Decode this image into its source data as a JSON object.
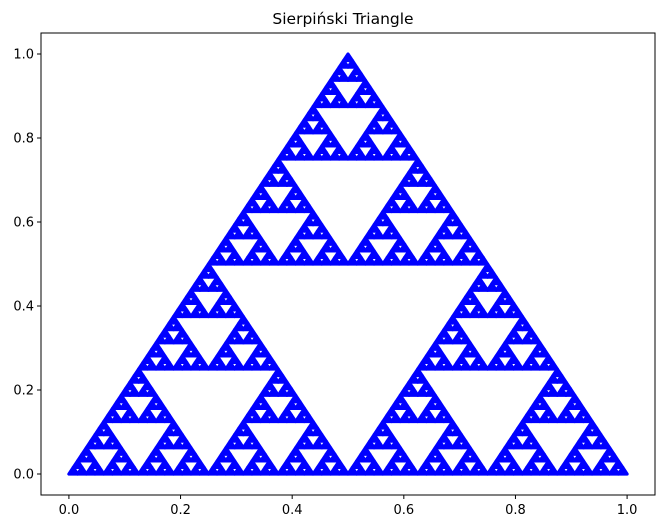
{
  "chart_data": {
    "type": "scatter",
    "title": "Sierpiński Triangle",
    "xlabel": "",
    "ylabel": "",
    "xlim": [
      -0.05,
      1.05
    ],
    "ylim": [
      -0.05,
      1.05
    ],
    "xticks": [
      0.0,
      0.2,
      0.4,
      0.6,
      0.8,
      1.0
    ],
    "yticks": [
      0.0,
      0.2,
      0.4,
      0.6,
      0.8,
      1.0
    ],
    "xtick_labels": [
      "0.0",
      "0.2",
      "0.4",
      "0.6",
      "0.8",
      "1.0"
    ],
    "ytick_labels": [
      "0.0",
      "0.2",
      "0.4",
      "0.6",
      "0.8",
      "1.0"
    ],
    "grid": false,
    "series": [
      {
        "color": "#0000ff",
        "vertices": [
          [
            0.0,
            0.0
          ],
          [
            1.0,
            0.0
          ],
          [
            0.5,
            1.0
          ]
        ],
        "recursion_depth": 6
      }
    ]
  }
}
